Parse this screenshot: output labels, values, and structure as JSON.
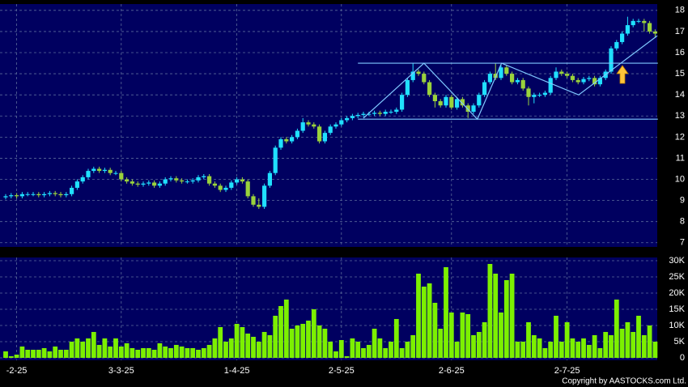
{
  "chart_data": [
    {
      "type": "candlestick",
      "categories": [
        null,
        null,
        "-2-25",
        null,
        null,
        null,
        null,
        null,
        null,
        null,
        null,
        null,
        null,
        null,
        null,
        null,
        null,
        null,
        null,
        null,
        null,
        "3-3-25",
        null,
        null,
        null,
        null,
        null,
        null,
        null,
        null,
        null,
        null,
        null,
        null,
        null,
        null,
        null,
        null,
        null,
        null,
        null,
        null,
        "1-4-25",
        null,
        null,
        null,
        null,
        null,
        null,
        null,
        null,
        null,
        null,
        null,
        null,
        null,
        null,
        null,
        null,
        null,
        null,
        "2-5-25",
        null,
        null,
        null,
        null,
        null,
        null,
        null,
        null,
        null,
        null,
        null,
        null,
        null,
        null,
        null,
        null,
        null,
        null,
        null,
        "2-6-25",
        null,
        null,
        null,
        null,
        null,
        null,
        null,
        null,
        null,
        null,
        null,
        null,
        null,
        null,
        null,
        null,
        null,
        null,
        null,
        null,
        "2-7-25",
        null,
        null,
        null,
        null,
        null,
        null,
        null,
        null,
        null,
        null,
        null,
        null,
        null,
        null,
        null,
        null
      ],
      "open": [
        9.15,
        9.2,
        9.25,
        9.2,
        9.3,
        9.3,
        9.3,
        9.25,
        9.3,
        9.35,
        9.3,
        9.25,
        9.3,
        9.6,
        9.9,
        10.1,
        10.4,
        10.5,
        10.4,
        10.45,
        10.3,
        10.3,
        10.0,
        9.9,
        9.8,
        9.75,
        9.8,
        9.85,
        9.7,
        9.8,
        10.0,
        10.05,
        9.95,
        9.9,
        9.9,
        9.95,
        10.1,
        10.15,
        9.8,
        9.7,
        9.5,
        9.6,
        9.85,
        10.0,
        9.9,
        9.2,
        8.8,
        8.7,
        9.7,
        10.3,
        11.5,
        11.9,
        11.8,
        12.0,
        12.3,
        12.7,
        12.6,
        12.5,
        11.8,
        12.2,
        12.5,
        12.6,
        12.8,
        12.9,
        13.0,
        13.05,
        13.1,
        13.1,
        13.15,
        13.1,
        13.2,
        13.2,
        13.3,
        14.0,
        14.7,
        15.1,
        15.0,
        14.6,
        14.0,
        13.7,
        13.5,
        13.9,
        13.4,
        13.8,
        13.5,
        13.2,
        13.5,
        14.0,
        14.6,
        15.0,
        14.8,
        15.3,
        15.0,
        14.6,
        14.7,
        14.3,
        13.9,
        14.0,
        14.0,
        14.1,
        14.8,
        15.1,
        15.0,
        14.9,
        14.7,
        14.6,
        14.75,
        14.8,
        14.5,
        14.8,
        15.1,
        16.2,
        16.5,
        16.9,
        17.3,
        17.5,
        17.5,
        17.4,
        17.0
      ],
      "high": [
        9.3,
        9.35,
        9.35,
        9.4,
        9.4,
        9.4,
        9.4,
        9.4,
        9.45,
        9.45,
        9.4,
        9.4,
        9.7,
        10.0,
        10.2,
        10.5,
        10.6,
        10.6,
        10.55,
        10.55,
        10.4,
        10.4,
        10.1,
        10.0,
        9.9,
        9.9,
        9.95,
        9.95,
        9.9,
        10.1,
        10.15,
        10.15,
        10.05,
        10.0,
        10.05,
        10.2,
        10.25,
        10.25,
        9.9,
        9.8,
        9.7,
        9.95,
        10.1,
        10.1,
        10.0,
        9.3,
        9.1,
        9.8,
        10.4,
        11.6,
        12.0,
        12.0,
        12.1,
        12.4,
        12.9,
        12.8,
        12.7,
        12.6,
        12.3,
        12.6,
        12.7,
        12.9,
        13.0,
        13.1,
        13.15,
        13.2,
        13.2,
        13.25,
        13.25,
        13.3,
        13.3,
        13.4,
        14.1,
        14.8,
        15.5,
        15.2,
        15.1,
        14.7,
        14.1,
        13.8,
        14.0,
        14.0,
        13.9,
        13.9,
        13.6,
        13.6,
        14.1,
        14.7,
        15.1,
        15.5,
        15.4,
        15.4,
        15.1,
        14.8,
        14.8,
        14.4,
        14.1,
        14.1,
        14.2,
        14.9,
        15.3,
        15.2,
        15.1,
        15.0,
        14.8,
        14.85,
        14.9,
        14.9,
        14.9,
        15.2,
        16.3,
        16.6,
        17.0,
        17.7,
        17.6,
        17.6,
        17.6,
        17.5,
        17.1
      ],
      "low": [
        9.05,
        9.1,
        9.1,
        9.1,
        9.2,
        9.2,
        9.15,
        9.15,
        9.2,
        9.2,
        9.15,
        9.15,
        9.2,
        9.5,
        9.8,
        10.0,
        10.3,
        10.3,
        10.3,
        10.2,
        10.2,
        9.9,
        9.8,
        9.7,
        9.65,
        9.65,
        9.7,
        9.6,
        9.6,
        9.7,
        9.9,
        9.85,
        9.8,
        9.8,
        9.8,
        9.85,
        10.0,
        9.7,
        9.6,
        9.4,
        9.4,
        9.5,
        9.75,
        9.8,
        9.1,
        8.7,
        8.6,
        8.6,
        9.6,
        10.2,
        11.4,
        11.7,
        11.7,
        11.9,
        12.2,
        12.5,
        12.4,
        11.7,
        11.7,
        12.1,
        12.4,
        12.5,
        12.7,
        12.8,
        12.9,
        12.95,
        13.0,
        13.0,
        13.0,
        13.0,
        13.1,
        13.1,
        13.2,
        13.9,
        14.6,
        14.9,
        14.5,
        13.9,
        13.4,
        13.4,
        13.4,
        13.3,
        13.3,
        13.4,
        12.9,
        13.1,
        13.4,
        13.9,
        14.5,
        14.7,
        14.7,
        14.9,
        14.5,
        14.5,
        14.2,
        13.5,
        13.6,
        13.9,
        13.9,
        14.0,
        14.7,
        14.9,
        14.8,
        14.6,
        14.5,
        14.5,
        14.65,
        14.4,
        14.4,
        14.7,
        15.0,
        16.1,
        16.4,
        16.8,
        17.2,
        17.4,
        17.0,
        16.9,
        16.7
      ],
      "close": [
        9.2,
        9.25,
        9.2,
        9.3,
        9.3,
        9.3,
        9.25,
        9.3,
        9.35,
        9.3,
        9.25,
        9.3,
        9.6,
        9.9,
        10.1,
        10.4,
        10.5,
        10.4,
        10.45,
        10.3,
        10.3,
        10.0,
        9.9,
        9.8,
        9.75,
        9.8,
        9.85,
        9.7,
        9.8,
        10.0,
        10.05,
        9.95,
        9.9,
        9.9,
        9.95,
        10.1,
        10.15,
        9.8,
        9.7,
        9.5,
        9.6,
        9.85,
        10.0,
        9.9,
        9.2,
        8.8,
        8.7,
        9.7,
        10.3,
        11.5,
        11.9,
        11.8,
        12.0,
        12.3,
        12.7,
        12.6,
        12.5,
        11.8,
        12.2,
        12.5,
        12.6,
        12.8,
        12.9,
        13.0,
        13.05,
        13.1,
        13.1,
        13.15,
        13.1,
        13.2,
        13.2,
        13.3,
        14.0,
        14.7,
        15.1,
        15.0,
        14.6,
        14.0,
        13.7,
        13.5,
        13.9,
        13.4,
        13.8,
        13.5,
        13.2,
        13.5,
        14.0,
        14.6,
        15.0,
        14.8,
        15.3,
        15.0,
        14.6,
        14.7,
        14.3,
        13.9,
        14.0,
        14.0,
        14.1,
        14.8,
        15.1,
        15.0,
        14.9,
        14.7,
        14.6,
        14.75,
        14.8,
        14.5,
        14.8,
        15.1,
        16.2,
        16.5,
        16.9,
        17.3,
        17.5,
        17.5,
        17.4,
        17.0,
        16.9
      ],
      "up_color": "#20e0ff",
      "down_color": "#9ad23c",
      "ylim": [
        6.8,
        18.3
      ],
      "yticks": [
        7,
        8,
        9,
        10,
        11,
        12,
        13,
        14,
        15,
        16,
        17,
        18
      ],
      "grid": true,
      "hlines": [
        {
          "y": 15.5,
          "x": [
            64,
            118.5
          ]
        },
        {
          "y": 12.85,
          "x": [
            64,
            118.5
          ]
        }
      ],
      "trendline": {
        "x": [
          65,
          76,
          85.7,
          90.1,
          104.1,
          118.4
        ],
        "y": [
          12.9,
          15.5,
          12.85,
          15.5,
          14.0,
          16.8
        ]
      },
      "line_color": "#7fc8ff"
    },
    {
      "type": "bar",
      "color": "#7cf000",
      "values": [
        2000,
        500,
        1000,
        3500,
        2500,
        2500,
        2500,
        3000,
        2000,
        3500,
        2500,
        2500,
        5000,
        6000,
        5000,
        6000,
        8000,
        4000,
        6000,
        3500,
        6000,
        3500,
        4500,
        3000,
        2500,
        3000,
        3000,
        2500,
        4500,
        3500,
        3000,
        4000,
        3500,
        3000,
        3000,
        2500,
        3000,
        4000,
        6000,
        9500,
        5000,
        6000,
        10500,
        9500,
        7500,
        6500,
        5000,
        8000,
        7000,
        13000,
        16000,
        18000,
        9000,
        10000,
        10500,
        11500,
        15000,
        10000,
        9000,
        5000,
        2000,
        5500,
        500,
        6000,
        5000,
        3000,
        4000,
        9000,
        6000,
        3000,
        5000,
        12000,
        3000,
        5000,
        7000,
        26000,
        22000,
        23000,
        17000,
        9000,
        28000,
        14000,
        5000,
        14000,
        13500,
        7000,
        8000,
        11000,
        29000,
        26000,
        14000,
        24000,
        26000,
        5000,
        5000,
        11000,
        7000,
        6000,
        3000,
        5000,
        13000,
        5000,
        11000,
        6000,
        5000,
        6000,
        4000,
        7000,
        3000,
        8000,
        7000,
        18000,
        9000,
        11000,
        8000,
        13000,
        7000,
        10000,
        5000
      ],
      "ylim": [
        0,
        31000
      ],
      "yticks": [
        0,
        {
          "value": 5000,
          "label": "5K"
        },
        {
          "value": 10000,
          "label": "10K"
        },
        {
          "value": 15000,
          "label": "15K"
        },
        {
          "value": 20000,
          "label": "20K"
        },
        {
          "value": 25000,
          "label": "25K"
        },
        {
          "value": 30000,
          "label": "30K"
        }
      ],
      "grid": true
    },
    {
      "type": "note",
      "text": "Copyright by AASTOCKS.com Ltd."
    }
  ]
}
